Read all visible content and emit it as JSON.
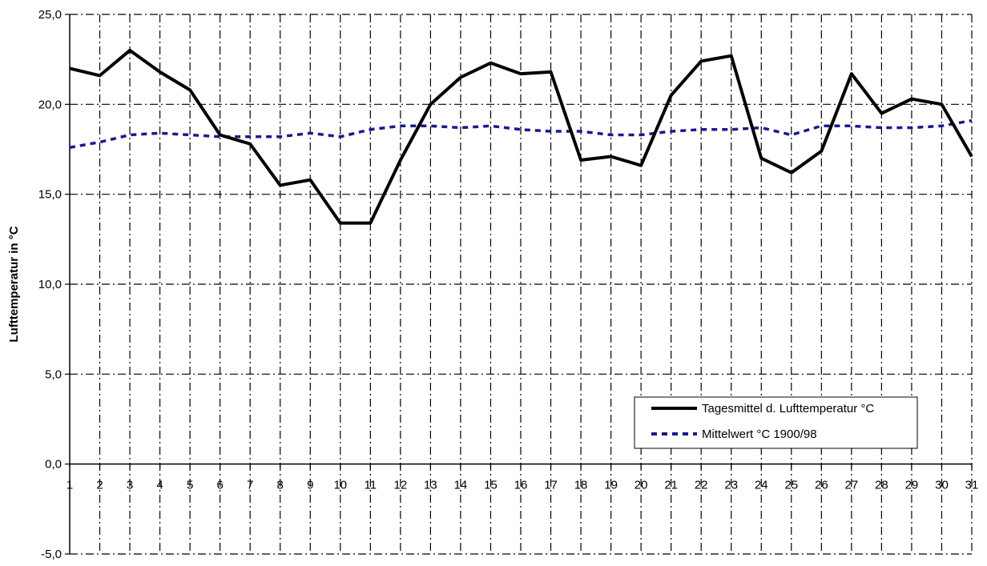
{
  "colors": {
    "observed": "#000000",
    "mean": "#1a1a8c",
    "grid": "#000000",
    "background": "#ffffff"
  },
  "chart_data": {
    "type": "line",
    "title": "",
    "xlabel": "",
    "ylabel": "Lufttemperatur in °C",
    "x": [
      1,
      2,
      3,
      4,
      5,
      6,
      7,
      8,
      9,
      10,
      11,
      12,
      13,
      14,
      15,
      16,
      17,
      18,
      19,
      20,
      21,
      22,
      23,
      24,
      25,
      26,
      27,
      28,
      29,
      30,
      31
    ],
    "x_tick_labels": [
      "1",
      "2",
      "3",
      "4",
      "5",
      "6",
      "7",
      "8",
      "9",
      "10",
      "11",
      "12",
      "13",
      "14",
      "15",
      "16",
      "17",
      "18",
      "19",
      "20",
      "21",
      "22",
      "23",
      "24",
      "25",
      "26",
      "27",
      "28",
      "29",
      "30",
      "31"
    ],
    "y_tick_values": [
      -5,
      0,
      5,
      10,
      15,
      20,
      25
    ],
    "y_tick_labels": [
      "-5,0",
      "0,0",
      "5,0",
      "10,0",
      "15,0",
      "20,0",
      "25,0"
    ],
    "xlim": [
      1,
      31
    ],
    "ylim": [
      -5,
      25
    ],
    "grid": true,
    "legend": "inside-lower-right",
    "series": [
      {
        "name": "Tagesmittel d. Lufttemperatur °C",
        "style": "solid",
        "values": [
          22.0,
          21.6,
          23.0,
          21.8,
          20.8,
          18.3,
          17.8,
          15.5,
          15.8,
          13.4,
          13.4,
          16.9,
          20.0,
          21.5,
          22.3,
          21.7,
          21.8,
          16.9,
          17.1,
          16.6,
          20.5,
          22.4,
          22.7,
          17.0,
          16.2,
          17.4,
          21.7,
          19.5,
          20.3,
          20.0,
          17.1
        ]
      },
      {
        "name": "Mittelwert °C 1900/98",
        "style": "dashed",
        "values": [
          17.6,
          17.9,
          18.3,
          18.4,
          18.3,
          18.2,
          18.2,
          18.2,
          18.4,
          18.2,
          18.6,
          18.8,
          18.8,
          18.7,
          18.8,
          18.6,
          18.5,
          18.5,
          18.3,
          18.3,
          18.5,
          18.6,
          18.6,
          18.7,
          18.3,
          18.8,
          18.8,
          18.7,
          18.7,
          18.8,
          19.1
        ]
      }
    ]
  }
}
